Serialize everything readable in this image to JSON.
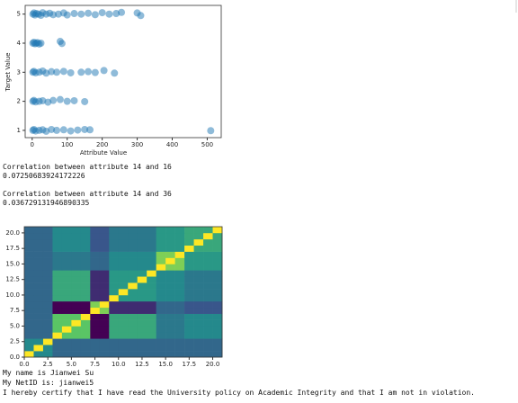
{
  "chart_data": [
    {
      "type": "scatter",
      "xlabel": "Attribute Value",
      "ylabel": "Target Value",
      "color": "#1f77b4",
      "xlim": [
        -20,
        540
      ],
      "xticks": [
        0,
        100,
        200,
        300,
        400,
        500
      ],
      "ylim": [
        0.75,
        5.3
      ],
      "yticks": [
        1,
        2,
        3,
        4,
        5
      ],
      "x": [
        2,
        5,
        8,
        12,
        18,
        25,
        30,
        40,
        50,
        60,
        75,
        90,
        100,
        120,
        140,
        160,
        180,
        200,
        220,
        240,
        255,
        300,
        310,
        2,
        5,
        8,
        12,
        15,
        20,
        25,
        80,
        85,
        2,
        5,
        10,
        20,
        30,
        40,
        55,
        70,
        90,
        110,
        140,
        160,
        180,
        205,
        235,
        2,
        5,
        10,
        20,
        30,
        45,
        60,
        80,
        100,
        120,
        150,
        2,
        5,
        10,
        20,
        30,
        40,
        55,
        70,
        90,
        110,
        130,
        150,
        165,
        510
      ],
      "values": [
        5,
        5.04,
        4.97,
        5.02,
        5,
        4.96,
        5.05,
        5,
        5.03,
        4.98,
        5,
        5.04,
        4.97,
        5.02,
        5,
        5.03,
        4.98,
        5.05,
        5,
        5.02,
        5.06,
        5.04,
        4.95,
        4,
        4.03,
        3.98,
        4,
        4.02,
        3.97,
        4,
        4.06,
        3.99,
        3,
        3.03,
        2.98,
        3,
        3.04,
        2.97,
        3.02,
        3,
        3.03,
        2.98,
        3,
        3.02,
        2.99,
        3.06,
        2.97,
        2,
        2.03,
        1.98,
        2,
        2.02,
        1.97,
        2.03,
        2.06,
        2,
        2.02,
        1.99,
        1,
        1.03,
        0.98,
        1,
        1.02,
        0.97,
        1.03,
        1,
        1.02,
        0.98,
        1.01,
        1.03,
        1.02,
        0.99
      ]
    },
    {
      "type": "heatmap",
      "xlim": [
        0,
        21
      ],
      "xticks": [
        {
          "value": 0,
          "label": "0.0"
        },
        2.5,
        {
          "value": 5,
          "label": "5.0"
        },
        7.5,
        {
          "value": 10,
          "label": "10.0"
        },
        12.5,
        {
          "value": 15,
          "label": "15.0"
        },
        17.5,
        {
          "value": 20,
          "label": "20.0"
        }
      ],
      "ylim": [
        0,
        21
      ],
      "yticks": [
        {
          "value": 0,
          "label": "0.0"
        },
        2.5,
        {
          "value": 5,
          "label": "5.0"
        },
        7.5,
        {
          "value": 10,
          "label": "10.0"
        },
        12.5,
        {
          "value": 15,
          "label": "15.0"
        },
        17.5,
        {
          "value": 20,
          "label": "20.0"
        }
      ],
      "z": [
        [
          1,
          0.2,
          0.2,
          0,
          0,
          0,
          0,
          0,
          0,
          0,
          0,
          0,
          0,
          0,
          0,
          0,
          0,
          0,
          0,
          0,
          0
        ],
        [
          0.2,
          1,
          0.2,
          0,
          0,
          0,
          0,
          0,
          0,
          0,
          0,
          0,
          0,
          0,
          0,
          0,
          0,
          0,
          0,
          0,
          0
        ],
        [
          0.2,
          0.2,
          1,
          0,
          0,
          0,
          0,
          0,
          0,
          0,
          0,
          0,
          0,
          0,
          0,
          0,
          0,
          0,
          0,
          0,
          0
        ],
        [
          0,
          0,
          0,
          1,
          0.6,
          0.6,
          0.6,
          -0.5,
          -0.5,
          0.4,
          0.4,
          0.4,
          0.4,
          0.4,
          0.1,
          0.1,
          0.1,
          0.2,
          0.2,
          0.2,
          0.2
        ],
        [
          0,
          0,
          0,
          0.6,
          1,
          0.6,
          0.6,
          -0.5,
          -0.5,
          0.4,
          0.4,
          0.4,
          0.4,
          0.4,
          0.1,
          0.1,
          0.1,
          0.2,
          0.2,
          0.2,
          0.2
        ],
        [
          0,
          0,
          0,
          0.6,
          0.6,
          1,
          0.6,
          -0.5,
          -0.5,
          0.4,
          0.4,
          0.4,
          0.4,
          0.4,
          0.1,
          0.1,
          0.1,
          0.2,
          0.2,
          0.2,
          0.2
        ],
        [
          0,
          0,
          0,
          0.6,
          0.6,
          0.6,
          1,
          -0.5,
          -0.5,
          0.4,
          0.4,
          0.4,
          0.4,
          0.4,
          0.1,
          0.1,
          0.1,
          0.2,
          0.2,
          0.2,
          0.2
        ],
        [
          0,
          0,
          0,
          -0.5,
          -0.5,
          -0.5,
          -0.5,
          1,
          0.7,
          -0.3,
          -0.3,
          -0.3,
          -0.3,
          -0.3,
          0,
          0,
          0,
          -0.1,
          -0.1,
          -0.1,
          -0.1
        ],
        [
          0,
          0,
          0,
          -0.5,
          -0.5,
          -0.5,
          -0.5,
          0.7,
          1,
          -0.3,
          -0.3,
          -0.3,
          -0.3,
          -0.3,
          0,
          0,
          0,
          -0.1,
          -0.1,
          -0.1,
          -0.1
        ],
        [
          0,
          0,
          0,
          0.4,
          0.4,
          0.4,
          0.4,
          -0.3,
          -0.3,
          1,
          0.3,
          0.3,
          0.3,
          0.3,
          0.2,
          0.2,
          0.2,
          0.1,
          0.1,
          0.1,
          0.1
        ],
        [
          0,
          0,
          0,
          0.4,
          0.4,
          0.4,
          0.4,
          -0.3,
          -0.3,
          0.3,
          1,
          0.3,
          0.3,
          0.3,
          0.2,
          0.2,
          0.2,
          0.1,
          0.1,
          0.1,
          0.1
        ],
        [
          0,
          0,
          0,
          0.4,
          0.4,
          0.4,
          0.4,
          -0.3,
          -0.3,
          0.3,
          0.3,
          1,
          0.3,
          0.3,
          0.2,
          0.2,
          0.2,
          0.1,
          0.1,
          0.1,
          0.1
        ],
        [
          0,
          0,
          0,
          0.4,
          0.4,
          0.4,
          0.4,
          -0.3,
          -0.3,
          0.3,
          0.3,
          0.3,
          1,
          0.3,
          0.2,
          0.2,
          0.2,
          0.1,
          0.1,
          0.1,
          0.1
        ],
        [
          0,
          0,
          0,
          0.4,
          0.4,
          0.4,
          0.4,
          -0.3,
          -0.3,
          0.3,
          0.3,
          0.3,
          0.3,
          1,
          0.2,
          0.2,
          0.2,
          0.1,
          0.1,
          0.1,
          0.1
        ],
        [
          0,
          0,
          0,
          0.1,
          0.1,
          0.1,
          0.1,
          0,
          0,
          0.2,
          0.2,
          0.2,
          0.2,
          0.2,
          1,
          0.7,
          0.7,
          0.3,
          0.3,
          0.3,
          0.3
        ],
        [
          0,
          0,
          0,
          0.1,
          0.1,
          0.1,
          0.1,
          0,
          0,
          0.2,
          0.2,
          0.2,
          0.2,
          0.2,
          0.7,
          1,
          0.7,
          0.3,
          0.3,
          0.3,
          0.3
        ],
        [
          0,
          0,
          0,
          0.1,
          0.1,
          0.1,
          0.1,
          0,
          0,
          0.2,
          0.2,
          0.2,
          0.2,
          0.2,
          0.7,
          0.7,
          1,
          0.3,
          0.3,
          0.3,
          0.3
        ],
        [
          0,
          0,
          0,
          0.2,
          0.2,
          0.2,
          0.2,
          -0.1,
          -0.1,
          0.1,
          0.1,
          0.1,
          0.1,
          0.1,
          0.3,
          0.3,
          0.3,
          1,
          0.4,
          0.4,
          0.4
        ],
        [
          0,
          0,
          0,
          0.2,
          0.2,
          0.2,
          0.2,
          -0.1,
          -0.1,
          0.1,
          0.1,
          0.1,
          0.1,
          0.1,
          0.3,
          0.3,
          0.3,
          0.4,
          1,
          0.4,
          0.4
        ],
        [
          0,
          0,
          0,
          0.2,
          0.2,
          0.2,
          0.2,
          -0.1,
          -0.1,
          0.1,
          0.1,
          0.1,
          0.1,
          0.1,
          0.3,
          0.3,
          0.3,
          0.4,
          0.4,
          1,
          0.4
        ],
        [
          0,
          0,
          0,
          0.2,
          0.2,
          0.2,
          0.2,
          -0.1,
          -0.1,
          0.1,
          0.1,
          0.1,
          0.1,
          0.1,
          0.3,
          0.3,
          0.3,
          0.4,
          0.4,
          0.4,
          1
        ]
      ]
    }
  ],
  "outputs": {
    "corr1_label": "Correlation between attribute 14 and 16",
    "corr1_value": "0.07250683924172226",
    "corr2_label": "Correlation between attribute 14 and 36",
    "corr2_value": "0.036729131946890335",
    "name": "My name is Jianwei Su",
    "netid": "My NetID is: jianwei5",
    "certify": "I hereby certify that I have read the University policy on Academic Integrity and that I am not in violation."
  }
}
